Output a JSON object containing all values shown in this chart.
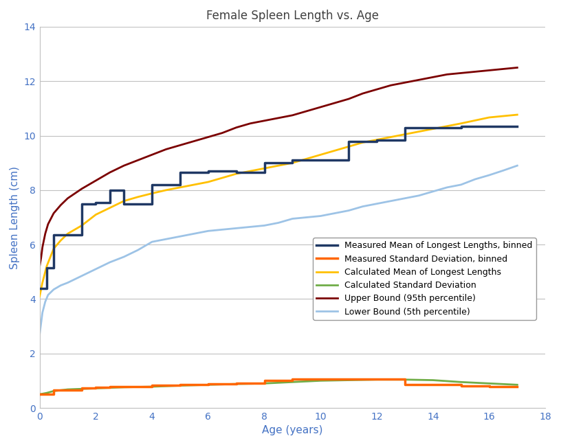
{
  "title": "Female Spleen Length vs. Age",
  "xlabel": "Age (years)",
  "ylabel": "Spleen Length (cm)",
  "xlim": [
    0,
    18
  ],
  "ylim": [
    0,
    14
  ],
  "xticks": [
    0,
    2,
    4,
    6,
    8,
    10,
    12,
    14,
    16,
    18
  ],
  "yticks": [
    0,
    2,
    4,
    6,
    8,
    10,
    12,
    14
  ],
  "background_color": "#ffffff",
  "title_color": "#404040",
  "axis_label_color": "#4472C4",
  "tick_color": "#4472C4",
  "grid_color": "#C0C0C0",
  "measured_mean_binned_color": "#1F3864",
  "measured_std_binned_color": "#FF6600",
  "calc_mean_color": "#FFC000",
  "calc_std_color": "#70AD47",
  "upper_bound_color": "#7B0000",
  "lower_bound_color": "#9DC3E6",
  "measured_mean_binned_x": [
    0.0,
    0.25,
    0.25,
    0.5,
    0.5,
    1.0,
    1.0,
    1.5,
    1.5,
    2.0,
    2.0,
    2.5,
    2.5,
    3.0,
    3.0,
    4.0,
    4.0,
    5.0,
    5.0,
    6.0,
    6.0,
    7.0,
    7.0,
    8.0,
    8.0,
    9.0,
    9.0,
    10.0,
    10.0,
    11.0,
    11.0,
    12.0,
    12.0,
    13.0,
    13.0,
    14.0,
    14.0,
    15.0,
    15.0,
    16.0,
    16.0,
    17.0
  ],
  "measured_mean_binned_y": [
    4.4,
    4.4,
    5.15,
    5.15,
    6.35,
    6.35,
    6.35,
    6.35,
    7.5,
    7.5,
    7.55,
    7.55,
    8.0,
    8.0,
    7.5,
    7.5,
    8.2,
    8.2,
    8.65,
    8.65,
    8.7,
    8.7,
    8.65,
    8.65,
    9.0,
    9.0,
    9.1,
    9.1,
    9.1,
    9.1,
    9.8,
    9.8,
    9.85,
    9.85,
    10.3,
    10.3,
    10.3,
    10.3,
    10.35,
    10.35,
    10.35,
    10.35
  ],
  "measured_std_binned_x": [
    0.0,
    0.25,
    0.25,
    0.5,
    0.5,
    1.0,
    1.0,
    1.5,
    1.5,
    2.0,
    2.0,
    2.5,
    2.5,
    3.0,
    3.0,
    4.0,
    4.0,
    5.0,
    5.0,
    6.0,
    6.0,
    7.0,
    7.0,
    8.0,
    8.0,
    9.0,
    9.0,
    10.0,
    10.0,
    11.0,
    11.0,
    12.0,
    12.0,
    13.0,
    13.0,
    14.0,
    14.0,
    15.0,
    15.0,
    16.0,
    16.0,
    17.0
  ],
  "measured_std_binned_y": [
    0.5,
    0.5,
    0.5,
    0.5,
    0.65,
    0.65,
    0.65,
    0.65,
    0.72,
    0.72,
    0.75,
    0.75,
    0.78,
    0.78,
    0.78,
    0.78,
    0.82,
    0.82,
    0.85,
    0.85,
    0.88,
    0.88,
    0.9,
    0.9,
    1.0,
    1.0,
    1.05,
    1.05,
    1.05,
    1.05,
    1.05,
    1.05,
    1.05,
    1.05,
    0.85,
    0.85,
    0.85,
    0.85,
    0.8,
    0.8,
    0.78,
    0.78
  ],
  "calc_mean_x": [
    0.0,
    0.1,
    0.25,
    0.5,
    0.75,
    1.0,
    1.5,
    2.0,
    2.5,
    3.0,
    3.5,
    4.0,
    4.5,
    5.0,
    5.5,
    6.0,
    6.5,
    7.0,
    7.5,
    8.0,
    8.5,
    9.0,
    9.5,
    10.0,
    10.5,
    11.0,
    11.5,
    12.0,
    12.5,
    13.0,
    13.5,
    14.0,
    14.5,
    15.0,
    15.5,
    16.0,
    16.5,
    17.0
  ],
  "calc_mean_y": [
    4.1,
    4.6,
    5.2,
    5.85,
    6.15,
    6.4,
    6.7,
    7.1,
    7.35,
    7.6,
    7.75,
    7.88,
    8.0,
    8.1,
    8.2,
    8.3,
    8.45,
    8.6,
    8.7,
    8.8,
    8.9,
    9.0,
    9.15,
    9.3,
    9.45,
    9.6,
    9.75,
    9.85,
    9.95,
    10.05,
    10.15,
    10.25,
    10.35,
    10.45,
    10.56,
    10.67,
    10.72,
    10.77
  ],
  "calc_std_x": [
    0.0,
    0.1,
    0.25,
    0.5,
    1.0,
    1.5,
    2.0,
    2.5,
    3.0,
    4.0,
    5.0,
    6.0,
    7.0,
    8.0,
    9.0,
    10.0,
    11.0,
    12.0,
    13.0,
    14.0,
    15.0,
    16.0,
    17.0
  ],
  "calc_std_y": [
    0.5,
    0.52,
    0.55,
    0.62,
    0.68,
    0.7,
    0.72,
    0.74,
    0.76,
    0.78,
    0.82,
    0.85,
    0.88,
    0.9,
    0.95,
    1.0,
    1.02,
    1.04,
    1.04,
    1.02,
    0.95,
    0.9,
    0.85
  ],
  "upper_bound_x": [
    0.0,
    0.05,
    0.1,
    0.2,
    0.3,
    0.5,
    0.75,
    1.0,
    1.5,
    2.0,
    2.5,
    3.0,
    3.5,
    4.0,
    4.5,
    5.0,
    5.5,
    6.0,
    6.5,
    7.0,
    7.5,
    8.0,
    8.5,
    9.0,
    9.5,
    10.0,
    10.5,
    11.0,
    11.5,
    12.0,
    12.5,
    13.0,
    13.5,
    14.0,
    14.5,
    15.0,
    15.5,
    16.0,
    16.5,
    17.0
  ],
  "upper_bound_y": [
    5.2,
    5.5,
    5.9,
    6.4,
    6.75,
    7.15,
    7.45,
    7.7,
    8.05,
    8.35,
    8.65,
    8.9,
    9.1,
    9.3,
    9.5,
    9.65,
    9.8,
    9.95,
    10.1,
    10.3,
    10.45,
    10.55,
    10.65,
    10.75,
    10.9,
    11.05,
    11.2,
    11.35,
    11.55,
    11.7,
    11.85,
    11.95,
    12.05,
    12.15,
    12.25,
    12.3,
    12.35,
    12.4,
    12.45,
    12.5
  ],
  "lower_bound_x": [
    0.0,
    0.05,
    0.1,
    0.2,
    0.3,
    0.5,
    0.75,
    1.0,
    1.5,
    2.0,
    2.5,
    3.0,
    3.5,
    4.0,
    4.5,
    5.0,
    5.5,
    6.0,
    6.5,
    7.0,
    7.5,
    8.0,
    8.5,
    9.0,
    9.5,
    10.0,
    10.5,
    11.0,
    11.5,
    12.0,
    12.5,
    13.0,
    13.5,
    14.0,
    14.5,
    15.0,
    15.5,
    16.0,
    16.5,
    17.0
  ],
  "lower_bound_y": [
    2.7,
    3.1,
    3.5,
    3.9,
    4.15,
    4.35,
    4.5,
    4.6,
    4.85,
    5.1,
    5.35,
    5.55,
    5.8,
    6.1,
    6.2,
    6.3,
    6.4,
    6.5,
    6.55,
    6.6,
    6.65,
    6.7,
    6.8,
    6.95,
    7.0,
    7.05,
    7.15,
    7.25,
    7.4,
    7.5,
    7.6,
    7.7,
    7.8,
    7.95,
    8.1,
    8.2,
    8.4,
    8.55,
    8.72,
    8.9
  ],
  "legend_labels": [
    "Measured Mean of Longest Lengths, binned",
    "Measured Standard Deviation, binned",
    "Calculated Mean of Longest Lengths",
    "Calculated Standard Deviation",
    "Upper Bound (95th percentile)",
    "Lower Bound (5th percentile)"
  ],
  "legend_colors": [
    "#1F3864",
    "#FF6600",
    "#FFC000",
    "#70AD47",
    "#7B0000",
    "#9DC3E6"
  ],
  "legend_linewidths": [
    2.5,
    2.5,
    2.0,
    2.0,
    2.0,
    2.0
  ]
}
